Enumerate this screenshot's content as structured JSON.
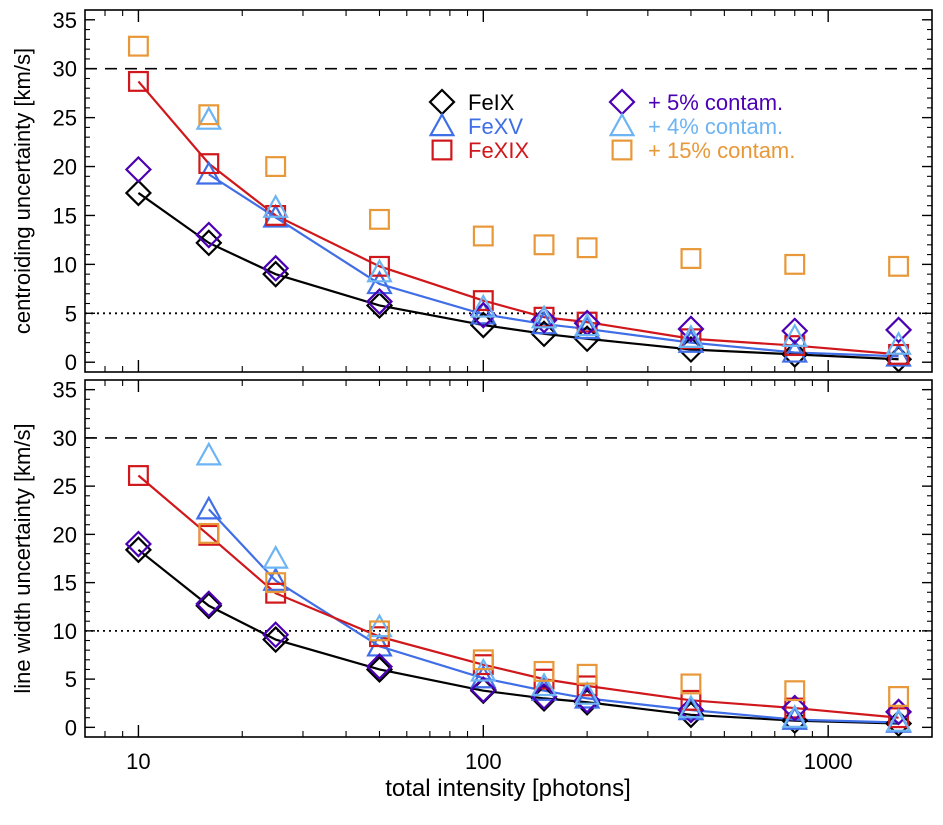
{
  "chart_data": {
    "type": "scatter",
    "xlabel": "total intensity [photons]",
    "xscale": "log",
    "xlim": [
      7,
      2000
    ],
    "ylim": [
      -1,
      36
    ],
    "x_tick_labels": [
      "10",
      "100",
      "1000"
    ],
    "y_tick_labels": [
      "0",
      "5",
      "10",
      "15",
      "20",
      "25",
      "30",
      "35"
    ],
    "x": [
      10,
      16,
      25,
      50,
      100,
      150,
      200,
      400,
      800,
      1600
    ],
    "colors": {
      "FeIX": "#000000",
      "FeXV": "#3f6ee6",
      "FeXIX": "#d0171b",
      "FeIX_contam": "#4b00b4",
      "FeXV_contam": "#6cb4f3",
      "FeXIX_contam": "#e89838"
    },
    "legend": [
      {
        "label": "FeIX",
        "marker": "diamond",
        "color": "#000000"
      },
      {
        "label": "FeXV",
        "marker": "triangle",
        "color": "#3f6ee6"
      },
      {
        "label": "FeXIX",
        "marker": "square",
        "color": "#d0171b"
      },
      {
        "label": "+ 5% contam.",
        "marker": "diamond",
        "color": "#4b00b4"
      },
      {
        "label": "+ 4% contam.",
        "marker": "triangle",
        "color": "#6cb4f3"
      },
      {
        "label": "+ 15% contam.",
        "marker": "square",
        "color": "#e89838"
      }
    ],
    "panels": [
      {
        "ylabel": "centroiding uncertainty [km/s]",
        "dashed_line": 30,
        "dotted_line": 5,
        "series": [
          {
            "name": "FeIX",
            "marker": "diamond",
            "color": "#000000",
            "line": true,
            "values": [
              17.3,
              12.2,
              9.0,
              5.8,
              3.8,
              2.9,
              2.4,
              1.3,
              0.8,
              0.3
            ]
          },
          {
            "name": "FeXV",
            "marker": "triangle",
            "color": "#3f6ee6",
            "line": true,
            "values": [
              null,
              19.2,
              14.8,
              8.0,
              4.9,
              3.9,
              3.4,
              2.0,
              1.0,
              0.6
            ]
          },
          {
            "name": "FeXIX",
            "marker": "square",
            "color": "#d0171b",
            "line": true,
            "values": [
              28.7,
              20.3,
              15.0,
              9.8,
              6.3,
              4.6,
              4.1,
              2.4,
              1.7,
              0.8
            ]
          },
          {
            "name": "+ 5% contam.",
            "marker": "diamond",
            "color": "#4b00b4",
            "line": false,
            "values": [
              19.7,
              13.0,
              9.6,
              6.2,
              4.8,
              4.3,
              4.0,
              3.4,
              3.2,
              3.3
            ]
          },
          {
            "name": "+ 4% contam.",
            "marker": "triangle",
            "color": "#6cb4f3",
            "line": false,
            "values": [
              null,
              24.8,
              15.8,
              9.2,
              5.6,
              4.5,
              3.7,
              2.5,
              2.6,
              1.8
            ]
          },
          {
            "name": "+ 15% contam.",
            "marker": "square",
            "color": "#e89838",
            "line": false,
            "values": [
              32.3,
              25.3,
              20.0,
              14.6,
              12.9,
              12.0,
              11.7,
              10.6,
              10.0,
              9.8
            ]
          }
        ]
      },
      {
        "ylabel": "line width uncertainty [km/s]",
        "dashed_line": 30,
        "dotted_line": 10,
        "series": [
          {
            "name": "FeIX",
            "marker": "diamond",
            "color": "#000000",
            "line": true,
            "values": [
              18.4,
              12.6,
              9.1,
              6.0,
              3.8,
              3.0,
              2.6,
              1.3,
              0.7,
              0.4
            ]
          },
          {
            "name": "FeXV",
            "marker": "triangle",
            "color": "#3f6ee6",
            "line": true,
            "values": [
              null,
              22.6,
              15.2,
              8.4,
              5.1,
              3.8,
              3.0,
              1.8,
              0.8,
              0.5
            ]
          },
          {
            "name": "FeXIX",
            "marker": "square",
            "color": "#d0171b",
            "line": true,
            "values": [
              26.1,
              19.9,
              13.9,
              9.4,
              6.5,
              5.0,
              4.3,
              2.8,
              2.0,
              1.0
            ]
          },
          {
            "name": "+ 5% contam.",
            "marker": "diamond",
            "color": "#4b00b4",
            "line": false,
            "values": [
              19.0,
              12.8,
              9.6,
              6.3,
              3.9,
              3.2,
              2.8,
              1.8,
              2.0,
              1.6
            ]
          },
          {
            "name": "+ 4% contam.",
            "marker": "triangle",
            "color": "#6cb4f3",
            "line": false,
            "values": [
              null,
              28.2,
              17.5,
              10.4,
              5.8,
              4.3,
              3.4,
              2.0,
              1.0,
              0.6
            ]
          },
          {
            "name": "+ 15% contam.",
            "marker": "square",
            "color": "#e89838",
            "line": false,
            "values": [
              null,
              20.1,
              15.0,
              10.0,
              7.0,
              5.8,
              5.5,
              4.5,
              3.8,
              3.2
            ]
          }
        ]
      }
    ]
  }
}
